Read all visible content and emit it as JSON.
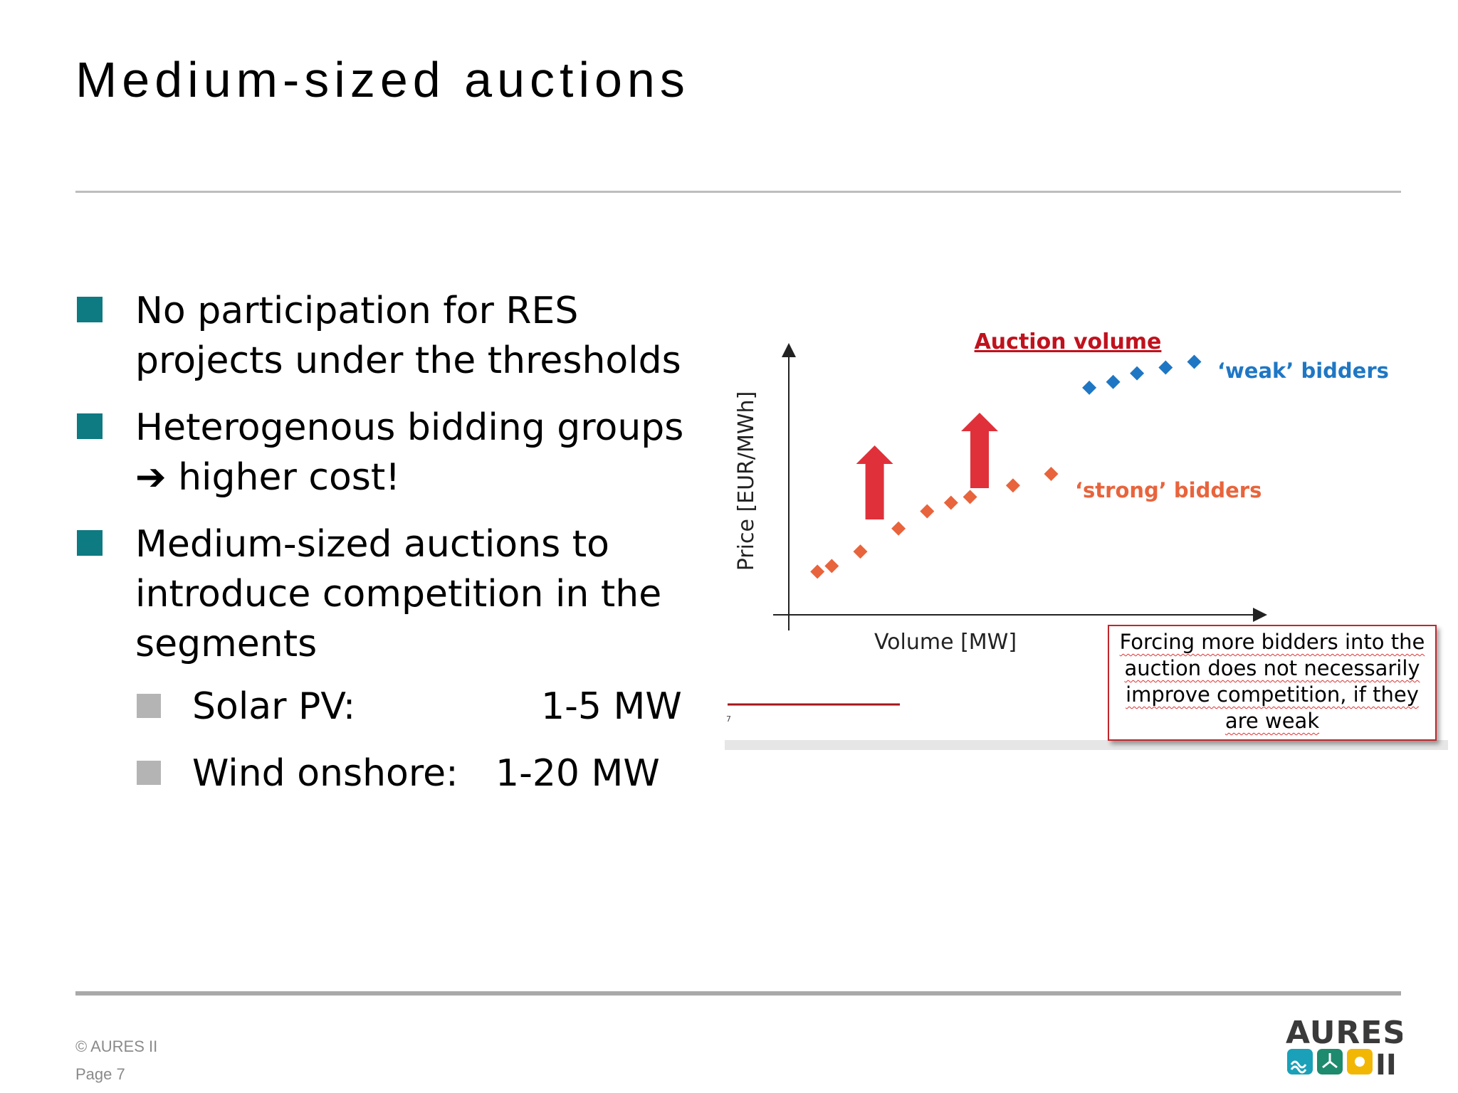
{
  "slide": {
    "title": "Medium-sized auctions",
    "bullets": [
      {
        "lines": [
          "No participation for RES",
          "projects under the thresholds"
        ]
      },
      {
        "lines": [
          "Heterogenous bidding groups",
          "➔ higher cost!"
        ]
      },
      {
        "lines": [
          "Medium-sized auctions to",
          "introduce competition in the",
          "segments"
        ]
      }
    ],
    "sub_bullets": [
      {
        "label": "Solar PV:",
        "value": "1-5 MW"
      },
      {
        "label": "Wind onshore:",
        "value": "1-20 MW"
      }
    ]
  },
  "chart": {
    "annotation": "Auction volume",
    "weak_label": "‘weak’ bidders",
    "strong_label": "‘strong’ bidders",
    "ylabel": "Price [EUR/MWh]",
    "xlabel": "Volume [MW]",
    "page_marker": "7",
    "note": [
      "Forcing more bidders into the",
      "auction does not necessarily",
      "improve competition, if they",
      "are weak"
    ]
  },
  "chart_data": {
    "type": "scatter",
    "xlabel": "Volume [MW]",
    "ylabel": "Price [EUR/MWh]",
    "xlim": [
      0,
      100
    ],
    "ylim": [
      0,
      100
    ],
    "grid": false,
    "series": [
      {
        "name": "‘strong’ bidders",
        "color": "#e8643c",
        "points": [
          [
            6,
            15
          ],
          [
            9,
            17
          ],
          [
            15,
            22
          ],
          [
            23,
            30
          ],
          [
            29,
            36
          ],
          [
            34,
            39
          ],
          [
            38,
            41
          ],
          [
            47,
            45
          ],
          [
            55,
            49
          ]
        ]
      },
      {
        "name": "‘weak’ bidders",
        "color": "#1f77c4",
        "points": [
          [
            63,
            79
          ],
          [
            68,
            81
          ],
          [
            73,
            84
          ],
          [
            79,
            86
          ],
          [
            85,
            88
          ]
        ]
      }
    ],
    "arrows": [
      {
        "x": 18,
        "color": "#e0313b"
      },
      {
        "x": 40,
        "color": "#e0313b"
      }
    ]
  },
  "footer": {
    "copyright": "© AURES II",
    "page": "Page 7",
    "logo_text": "AURES",
    "logo_suffix": "II"
  },
  "colors": {
    "teal": "#0e7a82",
    "grey_bullet": "#b4b4b4",
    "strong": "#e8643c",
    "weak": "#1f77c4",
    "arrow": "#e0313b",
    "annotation": "#c0121d"
  }
}
